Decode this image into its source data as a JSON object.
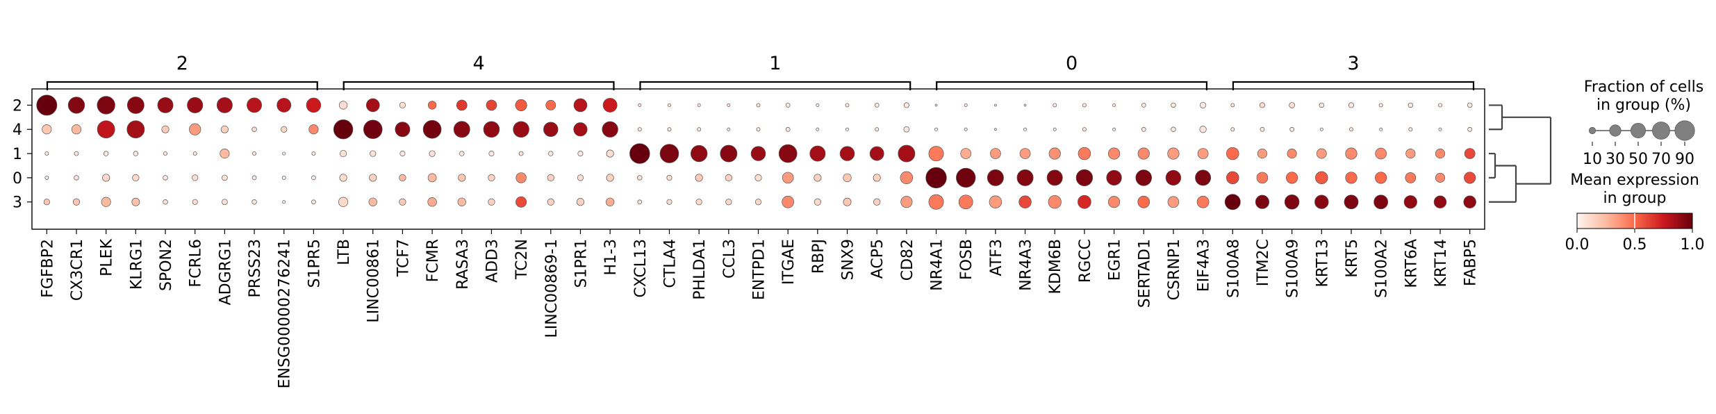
{
  "chart_data": {
    "type": "dotplot",
    "groups": [
      "2",
      "4",
      "1",
      "0",
      "3"
    ],
    "gene_groups": [
      {
        "label": "2",
        "genes": [
          "FGFBP2",
          "CX3CR1",
          "PLEK",
          "KLRG1",
          "SPON2",
          "FCRL6",
          "ADGRG1",
          "PRSS23",
          "ENSG00000276241",
          "S1PR5"
        ]
      },
      {
        "label": "4",
        "genes": [
          "LTB",
          "LINC00861",
          "TCF7",
          "FCMR",
          "RASA3",
          "ADD3",
          "TC2N",
          "LINC00869-1",
          "S1PR1",
          "H1-3"
        ]
      },
      {
        "label": "1",
        "genes": [
          "CXCL13",
          "CTLA4",
          "PHLDA1",
          "CCL3",
          "ENTPD1",
          "ITGAE",
          "RBPJ",
          "SNX9",
          "ACP5",
          "CD82"
        ]
      },
      {
        "label": "0",
        "genes": [
          "NR4A1",
          "FOSB",
          "ATF3",
          "NR4A3",
          "KDM6B",
          "RGCC",
          "EGR1",
          "SERTAD1",
          "CSRNP1",
          "EIF4A3"
        ]
      },
      {
        "label": "3",
        "genes": [
          "S100A8",
          "ITM2C",
          "S100A9",
          "KRT13",
          "KRT5",
          "S100A2",
          "KRT6A",
          "KRT14",
          "FABP5"
        ]
      }
    ],
    "fraction": [
      [
        0.95,
        0.62,
        0.73,
        0.65,
        0.55,
        0.56,
        0.55,
        0.5,
        0.45,
        0.48,
        0.15,
        0.4,
        0.08,
        0.15,
        0.25,
        0.25,
        0.3,
        0.22,
        0.4,
        0.45,
        0.02,
        0.02,
        0.02,
        0.02,
        0.03,
        0.04,
        0.02,
        0.03,
        0.04,
        0.06,
        0.01,
        0.02,
        0.01,
        0.01,
        0.03,
        0.03,
        0.02,
        0.04,
        0.05,
        0.08,
        0.03,
        0.06,
        0.07,
        0.05,
        0.06,
        0.03,
        0.05,
        0.03,
        0.05
      ],
      [
        0.2,
        0.2,
        0.7,
        0.7,
        0.12,
        0.3,
        0.12,
        0.05,
        0.08,
        0.2,
        0.85,
        0.8,
        0.5,
        0.75,
        0.6,
        0.58,
        0.58,
        0.48,
        0.42,
        0.57,
        0.03,
        0.03,
        0.03,
        0.02,
        0.03,
        0.04,
        0.02,
        0.02,
        0.03,
        0.07,
        0.02,
        0.02,
        0.01,
        0.02,
        0.02,
        0.03,
        0.02,
        0.04,
        0.05,
        0.1,
        0.03,
        0.04,
        0.04,
        0.02,
        0.03,
        0.02,
        0.03,
        0.02,
        0.04
      ],
      [
        0.03,
        0.04,
        0.05,
        0.05,
        0.03,
        0.03,
        0.2,
        0.03,
        0.02,
        0.03,
        0.1,
        0.08,
        0.06,
        0.08,
        0.05,
        0.06,
        0.04,
        0.05,
        0.06,
        0.12,
        0.92,
        0.8,
        0.62,
        0.65,
        0.48,
        0.75,
        0.55,
        0.48,
        0.45,
        0.65,
        0.5,
        0.25,
        0.25,
        0.25,
        0.3,
        0.35,
        0.3,
        0.3,
        0.3,
        0.25,
        0.35,
        0.2,
        0.2,
        0.22,
        0.3,
        0.28,
        0.2,
        0.2,
        0.25
      ],
      [
        0.03,
        0.05,
        0.12,
        0.1,
        0.05,
        0.08,
        0.07,
        0.04,
        0.03,
        0.04,
        0.12,
        0.12,
        0.1,
        0.16,
        0.12,
        0.1,
        0.24,
        0.1,
        0.08,
        0.12,
        0.05,
        0.06,
        0.12,
        0.1,
        0.1,
        0.28,
        0.12,
        0.15,
        0.12,
        0.35,
        0.98,
        0.85,
        0.6,
        0.6,
        0.55,
        0.62,
        0.52,
        0.58,
        0.52,
        0.55,
        0.35,
        0.28,
        0.3,
        0.35,
        0.3,
        0.3,
        0.25,
        0.2,
        0.3
      ],
      [
        0.08,
        0.1,
        0.2,
        0.14,
        0.05,
        0.06,
        0.07,
        0.05,
        0.02,
        0.04,
        0.2,
        0.15,
        0.1,
        0.18,
        0.15,
        0.1,
        0.26,
        0.1,
        0.12,
        0.15,
        0.04,
        0.06,
        0.08,
        0.08,
        0.08,
        0.32,
        0.1,
        0.14,
        0.1,
        0.3,
        0.5,
        0.45,
        0.35,
        0.35,
        0.38,
        0.4,
        0.3,
        0.32,
        0.28,
        0.32,
        0.55,
        0.42,
        0.48,
        0.43,
        0.45,
        0.45,
        0.38,
        0.35,
        0.35
      ]
    ],
    "expression": [
      [
        1.0,
        0.93,
        0.95,
        0.92,
        0.88,
        0.88,
        0.85,
        0.8,
        0.8,
        0.75,
        0.1,
        0.85,
        0.1,
        0.5,
        0.65,
        0.62,
        0.55,
        0.5,
        0.8,
        0.75,
        0.08,
        0.08,
        0.05,
        0.08,
        0.08,
        0.05,
        0.05,
        0.05,
        0.05,
        0.06,
        0.05,
        0.05,
        0.04,
        0.05,
        0.05,
        0.05,
        0.04,
        0.06,
        0.05,
        0.05,
        0.08,
        0.1,
        0.1,
        0.05,
        0.05,
        0.04,
        0.05,
        0.04,
        0.05
      ],
      [
        0.2,
        0.25,
        0.78,
        0.85,
        0.18,
        0.35,
        0.15,
        0.1,
        0.12,
        0.4,
        1.0,
        0.98,
        0.92,
        0.97,
        0.92,
        0.9,
        0.88,
        0.88,
        0.85,
        0.92,
        0.05,
        0.05,
        0.05,
        0.05,
        0.05,
        0.06,
        0.05,
        0.05,
        0.05,
        0.05,
        0.04,
        0.05,
        0.05,
        0.04,
        0.05,
        0.05,
        0.04,
        0.05,
        0.05,
        0.06,
        0.06,
        0.05,
        0.06,
        0.05,
        0.05,
        0.05,
        0.05,
        0.05,
        0.05
      ],
      [
        0.05,
        0.05,
        0.05,
        0.06,
        0.05,
        0.05,
        0.25,
        0.05,
        0.05,
        0.05,
        0.08,
        0.08,
        0.05,
        0.08,
        0.05,
        0.05,
        0.08,
        0.05,
        0.05,
        0.1,
        1.0,
        0.95,
        0.9,
        0.92,
        0.88,
        0.92,
        0.85,
        0.85,
        0.85,
        0.85,
        0.45,
        0.3,
        0.35,
        0.35,
        0.38,
        0.45,
        0.4,
        0.4,
        0.35,
        0.35,
        0.5,
        0.35,
        0.4,
        0.35,
        0.4,
        0.4,
        0.35,
        0.4,
        0.6
      ],
      [
        0.05,
        0.08,
        0.12,
        0.12,
        0.06,
        0.1,
        0.08,
        0.05,
        0.05,
        0.05,
        0.1,
        0.15,
        0.25,
        0.25,
        0.2,
        0.15,
        0.4,
        0.15,
        0.1,
        0.15,
        0.08,
        0.1,
        0.18,
        0.15,
        0.1,
        0.35,
        0.15,
        0.2,
        0.15,
        0.4,
        1.0,
        0.98,
        0.95,
        0.93,
        0.93,
        0.95,
        0.9,
        0.95,
        0.9,
        0.95,
        0.6,
        0.45,
        0.5,
        0.55,
        0.5,
        0.5,
        0.45,
        0.4,
        0.6
      ],
      [
        0.2,
        0.2,
        0.25,
        0.22,
        0.08,
        0.1,
        0.08,
        0.06,
        0.05,
        0.05,
        0.12,
        0.25,
        0.18,
        0.3,
        0.25,
        0.15,
        0.6,
        0.15,
        0.15,
        0.3,
        0.08,
        0.1,
        0.12,
        0.12,
        0.12,
        0.4,
        0.12,
        0.2,
        0.15,
        0.35,
        0.45,
        0.45,
        0.35,
        0.6,
        0.4,
        0.7,
        0.4,
        0.5,
        0.35,
        0.45,
        1.0,
        0.95,
        0.95,
        0.92,
        0.95,
        0.95,
        0.9,
        0.9,
        0.9
      ]
    ],
    "size_legend": {
      "title_line1": "Fraction of cells",
      "title_line2": "in group (%)",
      "values": [
        10,
        30,
        50,
        70,
        90
      ],
      "labels": [
        "10",
        "30",
        "50",
        "70",
        "90"
      ]
    },
    "color_legend": {
      "title_line1": "Mean expression",
      "title_line2": "in group",
      "ticks": [
        0.0,
        0.5,
        1.0
      ],
      "tick_labels": [
        "0.0",
        "0.5",
        "1.0"
      ],
      "colormap": "Reds",
      "colors": [
        "#fff5f0",
        "#fcbba1",
        "#fb6a4a",
        "#cb181d",
        "#67000d"
      ]
    },
    "dendrogram": true
  }
}
